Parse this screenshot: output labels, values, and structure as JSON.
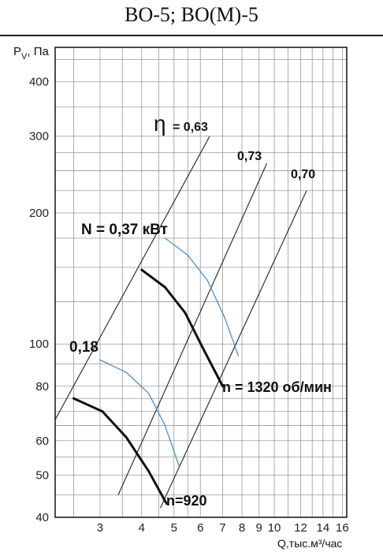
{
  "header": {
    "title": "ВО-5; ВО(М)-5"
  },
  "chart_data": {
    "type": "line",
    "x_scale": "log",
    "y_scale": "log",
    "xlabel": "Q,тыс.м³/час",
    "ylabel": "P",
    "ylabel_sub": "V",
    "ylabel_unit": ", Па",
    "xlim": [
      2.2,
      16.5
    ],
    "ylim": [
      40,
      480
    ],
    "x_ticks": [
      {
        "v": 3,
        "t": "3"
      },
      {
        "v": 4,
        "t": "4"
      },
      {
        "v": 5,
        "t": "5"
      },
      {
        "v": 6,
        "t": "6"
      },
      {
        "v": 7,
        "t": "7"
      },
      {
        "v": 8,
        "t": "8"
      },
      {
        "v": 9,
        "t": "9"
      },
      {
        "v": 10,
        "t": "10"
      },
      {
        "v": 12,
        "t": "12"
      },
      {
        "v": 14,
        "t": "14"
      },
      {
        "v": 16,
        "t": "16"
      }
    ],
    "y_ticks": [
      {
        "v": 40,
        "t": "40"
      },
      {
        "v": 50,
        "t": "50"
      },
      {
        "v": 60,
        "t": "60"
      },
      {
        "v": 80,
        "t": "80"
      },
      {
        "v": 100,
        "t": "100"
      },
      {
        "v": 200,
        "t": "200"
      },
      {
        "v": 300,
        "t": "300"
      },
      {
        "v": 400,
        "t": "400"
      }
    ],
    "grid_x": [
      2.5,
      3,
      3.5,
      4,
      4.5,
      5,
      5.5,
      6,
      7,
      8,
      9,
      10,
      11,
      12,
      13,
      14,
      15,
      16
    ],
    "grid_y": [
      40,
      45,
      50,
      55,
      60,
      65,
      70,
      75,
      80,
      90,
      100,
      125,
      150,
      175,
      200,
      225,
      250,
      275,
      300,
      350,
      400,
      450
    ],
    "series": [
      {
        "name": "n = 1320 об/мин",
        "color": "#111111",
        "width": 3,
        "x": [
          4,
          4.7,
          5.4,
          6.1,
          7
        ],
        "y": [
          148,
          135,
          118,
          98,
          80
        ]
      },
      {
        "name": "n=920",
        "color": "#111111",
        "width": 3,
        "x": [
          2.5,
          3.05,
          3.6,
          4.2,
          4.75
        ],
        "y": [
          75,
          70,
          61,
          51,
          43
        ]
      },
      {
        "name": "N = 0,37 кВт",
        "color": "#4f8fc8",
        "width": 1.3,
        "x": [
          4.7,
          5.5,
          6.3,
          7.1,
          7.8
        ],
        "y": [
          175,
          160,
          140,
          115,
          94
        ]
      },
      {
        "name": "0,18",
        "color": "#4f8fc8",
        "width": 1.3,
        "x": [
          3,
          3.6,
          4.2,
          4.7,
          5.2
        ],
        "y": [
          92,
          86,
          77,
          65,
          52
        ]
      }
    ],
    "efficiency_lines": [
      {
        "label": "0,63",
        "color": "#222222",
        "x": [
          2.2,
          6.4
        ],
        "y": [
          67,
          300
        ]
      },
      {
        "label": "0,73",
        "color": "#222222",
        "x": [
          3.4,
          9.5
        ],
        "y": [
          45,
          260
        ]
      },
      {
        "label": "0,70",
        "color": "#222222",
        "x": [
          4.55,
          12.5
        ],
        "y": [
          42,
          225
        ]
      }
    ],
    "annotations": {
      "eta_symbol": "η",
      "eta_value": "= 0,63",
      "eta2": "0,73",
      "eta3": "0,70",
      "power_high": "N = 0,37 кВт",
      "power_low": "0,18",
      "speed_high": "n = 1320 об/мин",
      "speed_low": "n=920"
    }
  }
}
